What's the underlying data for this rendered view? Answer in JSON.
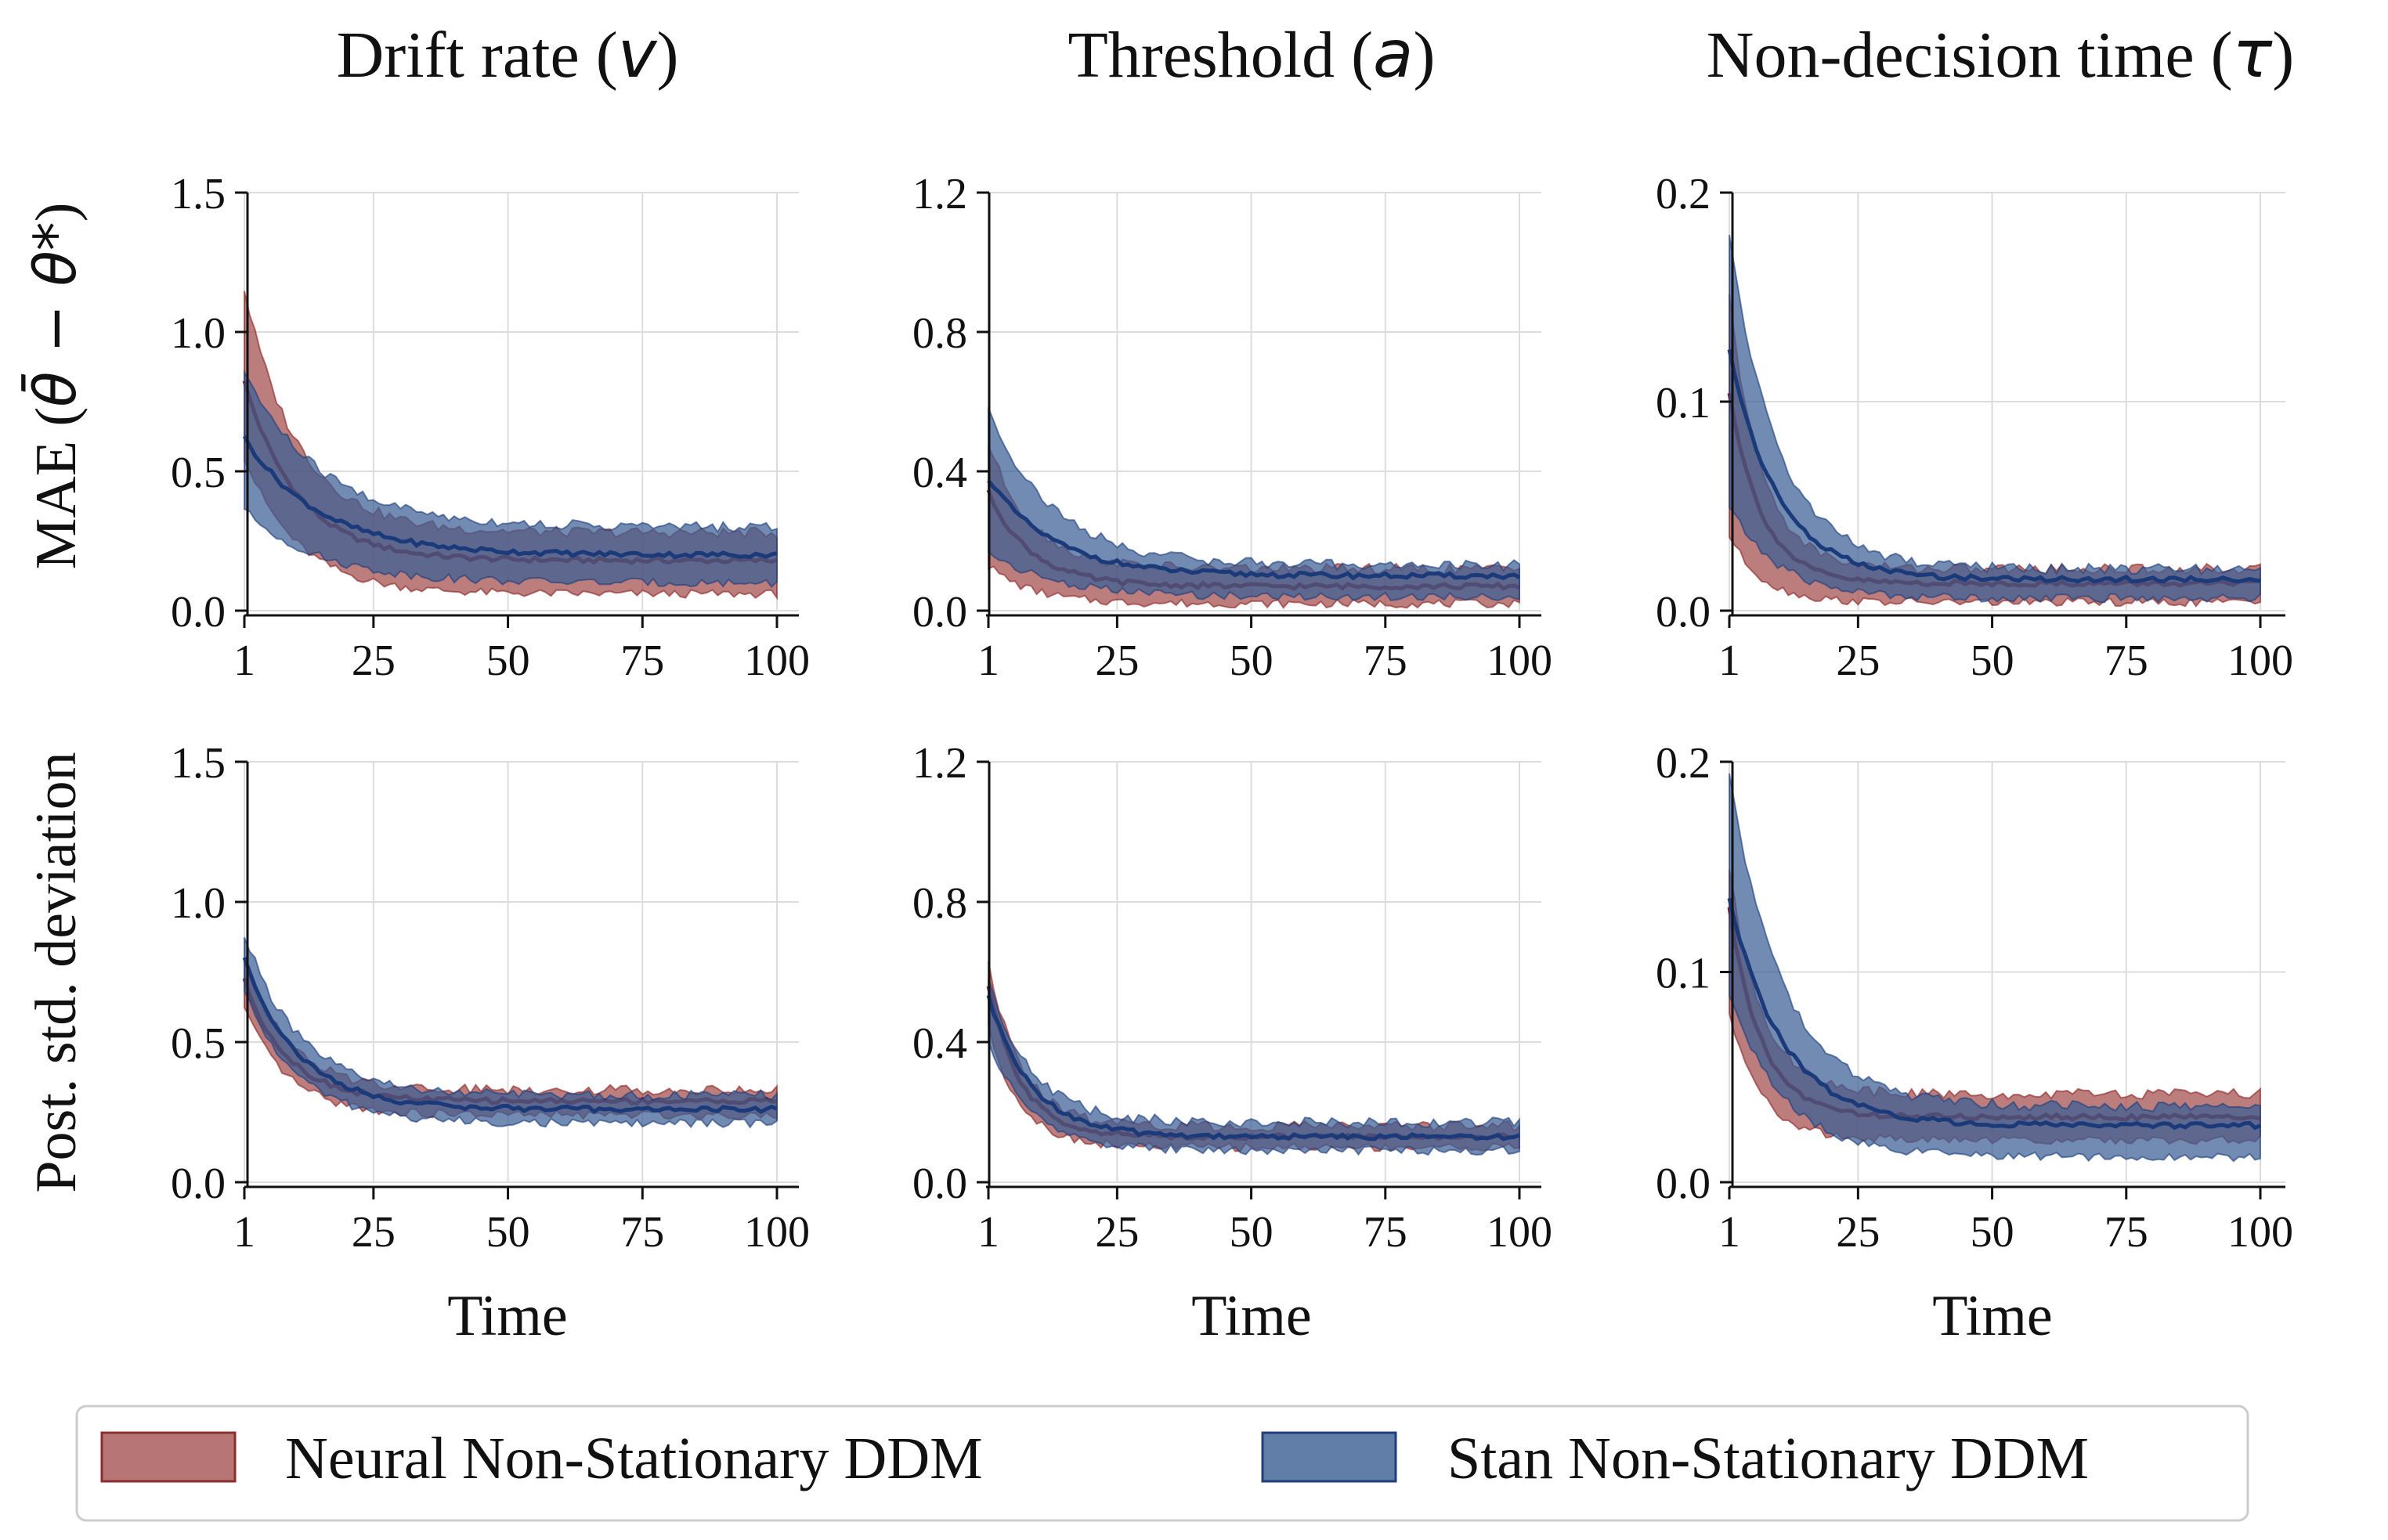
{
  "column_titles": [
    {
      "text": "Drift rate (",
      "sym": "v",
      "close": ")"
    },
    {
      "text": "Threshold (",
      "sym": "a",
      "close": ")"
    },
    {
      "text": "Non-decision time (",
      "sym": "τ",
      "close": ")"
    }
  ],
  "row_labels": [
    {
      "text": "MAE (",
      "sym": "θ̄ − θ*",
      "close": ")"
    },
    {
      "text": "Post. std. deviation",
      "sym": "",
      "close": ""
    }
  ],
  "xlabel": "Time",
  "legend": [
    {
      "label": "Neural Non-Stationary DDM",
      "color": "#8b2e2e"
    },
    {
      "label": "Stan Non-Stationary DDM",
      "color": "#1f3f7a"
    }
  ],
  "colors": {
    "neural_line": "#8b1f1f",
    "neural_fill": "#a55252",
    "stan_line": "#1a3a7a",
    "stan_fill": "#3a5e94",
    "grid": "#dcdcdc",
    "axis": "#111111"
  },
  "chart_data": [
    {
      "type": "area",
      "row": 0,
      "col": 0,
      "x_ticks": [
        1,
        25,
        50,
        75,
        100
      ],
      "x_tick_labels": [
        "1",
        "25",
        "50",
        "75",
        "100"
      ],
      "ylim": [
        0,
        1.5
      ],
      "y_ticks": [
        0.0,
        0.5,
        1.0,
        1.5
      ],
      "y_tick_labels": [
        "0.0",
        "0.5",
        "1.0",
        "1.5"
      ],
      "series": [
        {
          "name": "Neural Non-Stationary DDM",
          "start": 0.82,
          "tau": 10,
          "end": 0.18,
          "band_lo_frac": 0.45,
          "band_hi_frac": 0.5,
          "band_start": [
            0.55,
            1.15
          ],
          "band_end": [
            0.06,
            0.28
          ]
        },
        {
          "name": "Stan Non-Stationary DDM",
          "start": 0.62,
          "tau": 14,
          "end": 0.2,
          "band_lo_frac": 0.4,
          "band_hi_frac": 0.45,
          "band_start": [
            0.36,
            0.86
          ],
          "band_end": [
            0.1,
            0.3
          ]
        }
      ]
    },
    {
      "type": "area",
      "row": 0,
      "col": 1,
      "x_ticks": [
        1,
        25,
        50,
        75,
        100
      ],
      "x_tick_labels": [
        "1",
        "25",
        "50",
        "75",
        "100"
      ],
      "ylim": [
        0,
        1.2
      ],
      "y_ticks": [
        0.0,
        0.4,
        0.8,
        1.2
      ],
      "y_tick_labels": [
        "0.0",
        "0.4",
        "0.8",
        "1.2"
      ],
      "series": [
        {
          "name": "Neural Non-Stationary DDM",
          "start": 0.34,
          "tau": 8,
          "end": 0.07,
          "band_lo_frac": 0.6,
          "band_hi_frac": 0.6,
          "band_start": [
            0.13,
            0.48
          ],
          "band_end": [
            0.02,
            0.12
          ]
        },
        {
          "name": "Stan Non-Stationary DDM",
          "start": 0.38,
          "tau": 12,
          "end": 0.1,
          "band_lo_frac": 0.5,
          "band_hi_frac": 0.5,
          "band_start": [
            0.17,
            0.58
          ],
          "band_end": [
            0.04,
            0.13
          ]
        }
      ]
    },
    {
      "type": "area",
      "row": 0,
      "col": 2,
      "x_ticks": [
        1,
        25,
        50,
        75,
        100
      ],
      "x_tick_labels": [
        "1",
        "25",
        "50",
        "75",
        "100"
      ],
      "ylim": [
        0,
        0.2
      ],
      "y_ticks": [
        0.0,
        0.1,
        0.2
      ],
      "y_tick_labels": [
        "0.0",
        "0.1",
        "0.2"
      ],
      "series": [
        {
          "name": "Neural Non-Stationary DDM",
          "start": 0.105,
          "tau": 6,
          "end": 0.013,
          "band_lo_frac": 0.7,
          "band_hi_frac": 0.7,
          "band_start": [
            0.036,
            0.15
          ],
          "band_end": [
            0.004,
            0.02
          ]
        },
        {
          "name": "Stan Non-Stationary DDM",
          "start": 0.125,
          "tau": 9,
          "end": 0.015,
          "band_lo_frac": 0.5,
          "band_hi_frac": 0.6,
          "band_start": [
            0.05,
            0.18
          ],
          "band_end": [
            0.006,
            0.02
          ]
        }
      ]
    },
    {
      "type": "area",
      "row": 1,
      "col": 0,
      "x_ticks": [
        1,
        25,
        50,
        75,
        100
      ],
      "x_tick_labels": [
        "1",
        "25",
        "50",
        "75",
        "100"
      ],
      "ylim": [
        0,
        1.5
      ],
      "y_ticks": [
        0.0,
        0.5,
        1.0,
        1.5
      ],
      "y_tick_labels": [
        "0.0",
        "0.5",
        "1.0",
        "1.5"
      ],
      "series": [
        {
          "name": "Neural Non-Stationary DDM",
          "start": 0.72,
          "tau": 8,
          "end": 0.29,
          "band_lo_frac": 0.15,
          "band_hi_frac": 0.15,
          "band_start": [
            0.62,
            0.8
          ],
          "band_end": [
            0.24,
            0.33
          ]
        },
        {
          "name": "Stan Non-Stationary DDM",
          "start": 0.8,
          "tau": 10,
          "end": 0.26,
          "band_lo_frac": 0.18,
          "band_hi_frac": 0.18,
          "band_start": [
            0.68,
            0.89
          ],
          "band_end": [
            0.21,
            0.31
          ]
        }
      ]
    },
    {
      "type": "area",
      "row": 1,
      "col": 1,
      "x_ticks": [
        1,
        25,
        50,
        75,
        100
      ],
      "x_tick_labels": [
        "1",
        "25",
        "50",
        "75",
        "100"
      ],
      "ylim": [
        0,
        1.2
      ],
      "y_ticks": [
        0.0,
        0.4,
        0.8,
        1.2
      ],
      "y_tick_labels": [
        "0.0",
        "0.4",
        "0.8",
        "1.2"
      ],
      "series": [
        {
          "name": "Neural Non-Stationary DDM",
          "start": 0.56,
          "tau": 6,
          "end": 0.13,
          "band_lo_frac": 0.2,
          "band_hi_frac": 0.2,
          "band_start": [
            0.44,
            0.63
          ],
          "band_end": [
            0.1,
            0.16
          ]
        },
        {
          "name": "Stan Non-Stationary DDM",
          "start": 0.53,
          "tau": 8,
          "end": 0.13,
          "band_lo_frac": 0.25,
          "band_hi_frac": 0.25,
          "band_start": [
            0.4,
            0.58
          ],
          "band_end": [
            0.09,
            0.17
          ]
        }
      ]
    },
    {
      "type": "area",
      "row": 1,
      "col": 2,
      "x_ticks": [
        1,
        25,
        50,
        75,
        100
      ],
      "x_tick_labels": [
        "1",
        "25",
        "50",
        "75",
        "100"
      ],
      "ylim": [
        0,
        0.2
      ],
      "y_ticks": [
        0.0,
        0.1,
        0.2
      ],
      "y_tick_labels": [
        "0.0",
        "0.1",
        "0.2"
      ],
      "series": [
        {
          "name": "Neural Non-Stationary DDM",
          "start": 0.13,
          "tau": 6,
          "end": 0.031,
          "band_lo_frac": 0.3,
          "band_hi_frac": 0.3,
          "band_start": [
            0.08,
            0.15
          ],
          "band_end": [
            0.02,
            0.042
          ]
        },
        {
          "name": "Stan Non-Stationary DDM",
          "start": 0.135,
          "tau": 10,
          "end": 0.027,
          "band_lo_frac": 0.4,
          "band_hi_frac": 0.45,
          "band_start": [
            0.09,
            0.195
          ],
          "band_end": [
            0.012,
            0.036
          ]
        }
      ]
    }
  ]
}
